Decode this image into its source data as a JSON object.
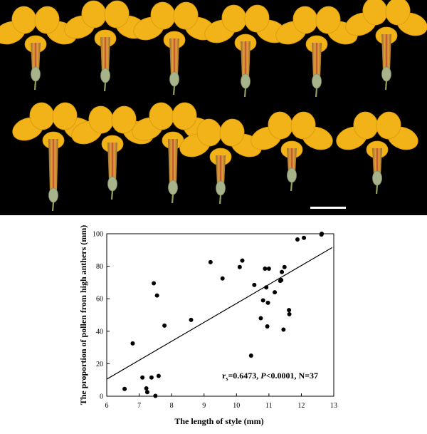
{
  "figure": {
    "photo": {
      "description_icon": "flower-photo-icon",
      "background_color": "#000000",
      "petal_color": "#f2b318",
      "scale_bar_color": "#ffffff"
    },
    "stat_annotation": {
      "r_symbol": "r",
      "r_subscript": "s",
      "r_value": "=0.6473, ",
      "p_symbol": "P",
      "p_value": "<0.0001, N=37"
    }
  },
  "chart_data": {
    "type": "scatter",
    "title": "",
    "xlabel": "The length of style (mm)",
    "ylabel": "The proportion of pollen from high anthers (mm)",
    "xlim": [
      6,
      13
    ],
    "ylim": [
      0,
      100
    ],
    "xticks": [
      "6",
      "7",
      "8",
      "9",
      "10",
      "11",
      "12",
      "13"
    ],
    "yticks": [
      "0",
      "20",
      "40",
      "60",
      "80",
      "100"
    ],
    "grid": false,
    "legend": "none",
    "points": [
      [
        6.55,
        4.5
      ],
      [
        6.8,
        32.5
      ],
      [
        7.1,
        11.5
      ],
      [
        7.22,
        4.8
      ],
      [
        7.25,
        2.5
      ],
      [
        7.38,
        11.5
      ],
      [
        7.45,
        69.5
      ],
      [
        7.5,
        0.2
      ],
      [
        7.55,
        62.0
      ],
      [
        7.6,
        12.5
      ],
      [
        7.78,
        43.5
      ],
      [
        8.6,
        47.0
      ],
      [
        9.2,
        82.5
      ],
      [
        9.57,
        72.5
      ],
      [
        10.1,
        79.5
      ],
      [
        10.18,
        83.5
      ],
      [
        10.45,
        25.0
      ],
      [
        10.55,
        68.5
      ],
      [
        10.75,
        48.0
      ],
      [
        10.82,
        59.0
      ],
      [
        10.88,
        78.5
      ],
      [
        10.92,
        67.0
      ],
      [
        10.95,
        43.0
      ],
      [
        10.97,
        57.5
      ],
      [
        11.0,
        78.5
      ],
      [
        11.18,
        64.0
      ],
      [
        11.35,
        71.0
      ],
      [
        11.38,
        71.5
      ],
      [
        11.4,
        76.5
      ],
      [
        11.45,
        41.0
      ],
      [
        11.48,
        79.5
      ],
      [
        11.62,
        53.0
      ],
      [
        11.63,
        50.5
      ],
      [
        11.88,
        96.5
      ],
      [
        12.08,
        97.5
      ],
      [
        12.62,
        99.5
      ],
      [
        12.63,
        100.0
      ]
    ],
    "fit_line": {
      "x": [
        6.0,
        12.95
      ],
      "y": [
        10.5,
        91.5
      ]
    },
    "point_color": "#000000",
    "line_color": "#000000"
  }
}
